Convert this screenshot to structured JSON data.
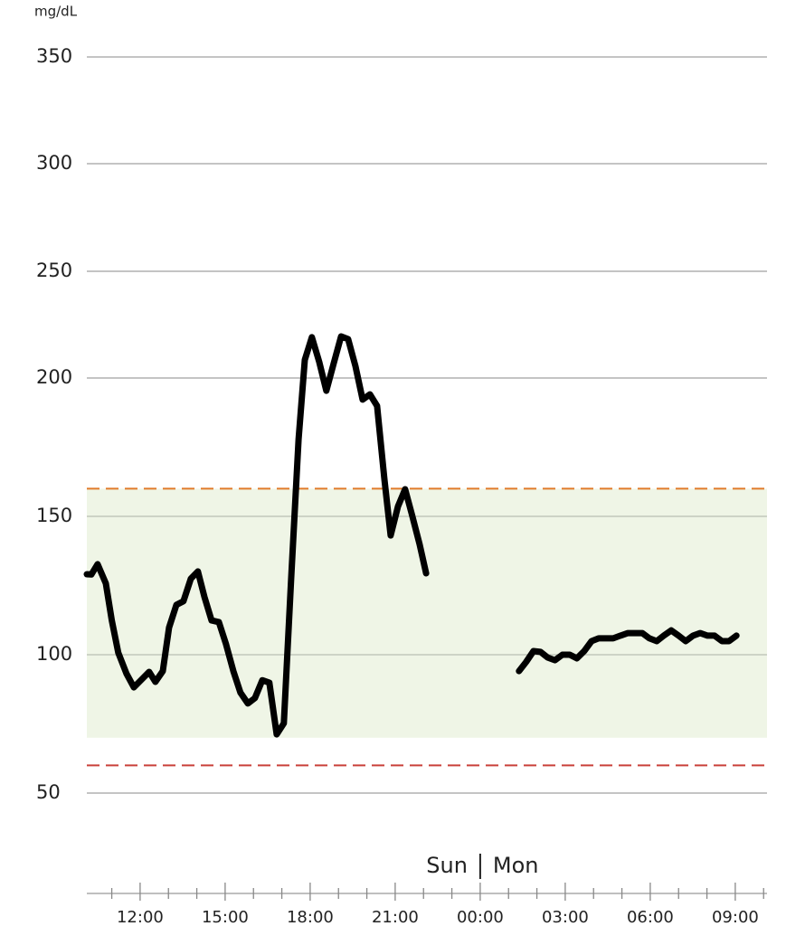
{
  "chart_data": {
    "type": "line",
    "y_axis_label": "mg/dL",
    "day_labels": [
      "Sun",
      "Mon"
    ],
    "day_boundary": 24,
    "xlim": [
      10.12,
      34.12
    ],
    "xticks": [
      {
        "value": 12,
        "label": "12:00"
      },
      {
        "value": 15,
        "label": "15:00"
      },
      {
        "value": 18,
        "label": "18:00"
      },
      {
        "value": 21,
        "label": "21:00"
      },
      {
        "value": 24,
        "label": "00:00"
      },
      {
        "value": 27,
        "label": "03:00"
      },
      {
        "value": 30,
        "label": "06:00"
      },
      {
        "value": 33,
        "label": "09:00"
      }
    ],
    "xminorticks": [
      11,
      13,
      14,
      16,
      17,
      19,
      20,
      22,
      23,
      25,
      26,
      28,
      29,
      31,
      32,
      34
    ],
    "ylim": [
      14,
      350
    ],
    "yticks": [
      50,
      100,
      150,
      200,
      250,
      300,
      350
    ],
    "grid": true,
    "target_range": [
      70,
      160
    ],
    "target_color": "#eff5e6",
    "high_line": 160,
    "high_color": "#e07b2a",
    "low_line": 60,
    "low_color": "#c9403a",
    "series": [
      {
        "color": "#000000",
        "x": [
          10.12,
          10.28,
          10.5,
          10.79,
          11.0,
          11.23,
          11.52,
          11.78,
          12.03,
          12.32,
          12.54,
          12.8,
          13.02,
          13.28,
          13.53,
          13.79,
          14.04,
          14.27,
          14.52,
          14.78,
          15.03,
          15.29,
          15.54,
          15.8,
          16.05,
          16.31,
          16.56,
          16.82,
          17.07,
          17.33,
          17.59,
          17.81,
          18.06,
          18.32,
          18.57,
          18.83,
          19.09,
          19.34,
          19.6,
          19.85,
          20.11,
          20.36,
          20.62,
          20.84,
          21.1,
          21.35,
          21.6,
          21.86,
          22.09
        ],
        "values": [
          129.1,
          129,
          132.7,
          125.8,
          112.4,
          100.7,
          93.1,
          88.2,
          90.8,
          93.8,
          90.2,
          94.1,
          109.8,
          118,
          119.3,
          127.5,
          130.1,
          120.9,
          112.4,
          111.8,
          103.9,
          94.1,
          86.3,
          82.4,
          84.3,
          90.8,
          89.9,
          71.2,
          75.2,
          127.5,
          177.8,
          208.5,
          219.1,
          207.6,
          195.4,
          206.8,
          219.5,
          218.2,
          205.5,
          192.2,
          194.1,
          189.9,
          163.4,
          143.1,
          153.6,
          159.8,
          150.3,
          139.9,
          129.4
        ]
      },
      {
        "color": "#000000",
        "x": [
          25.37,
          25.62,
          25.88,
          26.13,
          26.38,
          26.64,
          26.9,
          27.16,
          27.41,
          27.67,
          27.93,
          28.18,
          28.44,
          28.69,
          28.95,
          29.21,
          29.46,
          29.72,
          29.97,
          30.23,
          30.48,
          30.74,
          31.0,
          31.25,
          31.51,
          31.76,
          32.02,
          32.27,
          32.53,
          32.78,
          33.04
        ],
        "values": [
          94.1,
          97.4,
          101.3,
          101,
          99,
          98,
          100,
          100,
          98.7,
          101.3,
          104.9,
          105.9,
          105.9,
          105.9,
          106.9,
          107.8,
          107.8,
          107.8,
          105.9,
          104.9,
          106.9,
          108.8,
          106.9,
          104.9,
          106.9,
          107.8,
          106.9,
          106.9,
          104.9,
          104.9,
          106.9
        ]
      }
    ]
  }
}
